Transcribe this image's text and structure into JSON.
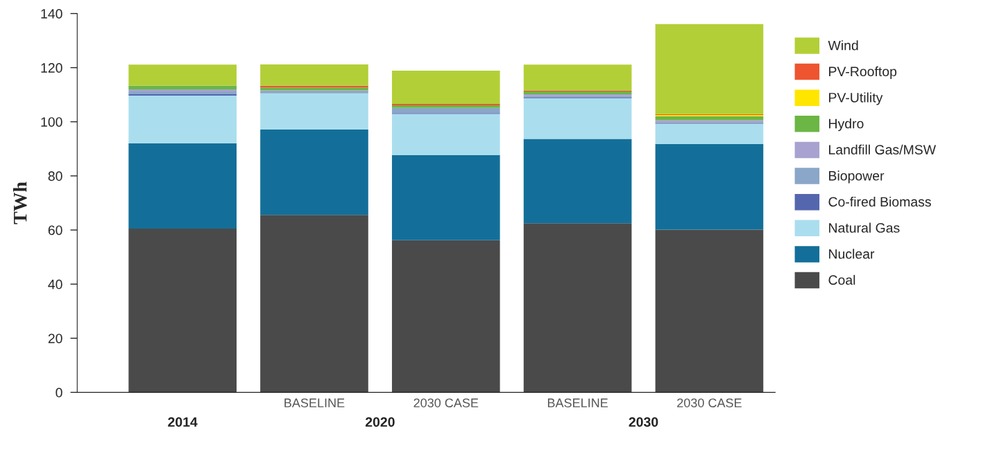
{
  "chart_data": {
    "type": "bar",
    "stacked": true,
    "ylabel": "TWh",
    "categories": [
      null,
      "BASELINE",
      "2030 CASE",
      "BASELINE",
      "2030 CASE"
    ],
    "annotations": [
      "2014",
      "2020",
      "2030"
    ],
    "ylim": [
      0,
      140
    ],
    "yticks": [
      0,
      20,
      40,
      60,
      80,
      100,
      120,
      140
    ],
    "grid": false,
    "legend": "right",
    "series": [
      {
        "name": "Coal",
        "color": "#4a4a4a",
        "values": [
          60.5,
          65.6,
          56.2,
          62.5,
          60.1
        ]
      },
      {
        "name": "Nuclear",
        "color": "#136f99",
        "values": [
          31.5,
          31.5,
          31.5,
          31.2,
          31.7
        ]
      },
      {
        "name": "Natural Gas",
        "color": "#aadeee",
        "values": [
          17.7,
          13.4,
          15.2,
          15.0,
          7.5
        ]
      },
      {
        "name": "Co-fired Biomass",
        "color": "#5466ae",
        "values": [
          0.5,
          0,
          0.3,
          0.4,
          0.3
        ]
      },
      {
        "name": "Biopower",
        "color": "#8aa6c8",
        "values": [
          1.0,
          0.7,
          1.9,
          0.5,
          0.3
        ]
      },
      {
        "name": "Landfill Gas/MSW",
        "color": "#a7a2cf",
        "values": [
          0.8,
          0.4,
          0,
          0.6,
          0.7
        ]
      },
      {
        "name": "Hydro",
        "color": "#6bb644",
        "values": [
          1.4,
          1.1,
          1.0,
          1.0,
          1.4
        ]
      },
      {
        "name": "PV-Utility",
        "color": "#ffe600",
        "values": [
          0,
          0,
          0,
          0,
          0.5
        ]
      },
      {
        "name": "PV-Rooftop",
        "color": "#ee5430",
        "values": [
          0,
          0.6,
          0.5,
          0.4,
          0.3
        ]
      },
      {
        "name": "Wind",
        "color": "#b3cf37",
        "values": [
          7.7,
          7.9,
          12.3,
          9.5,
          33.3
        ]
      }
    ]
  }
}
